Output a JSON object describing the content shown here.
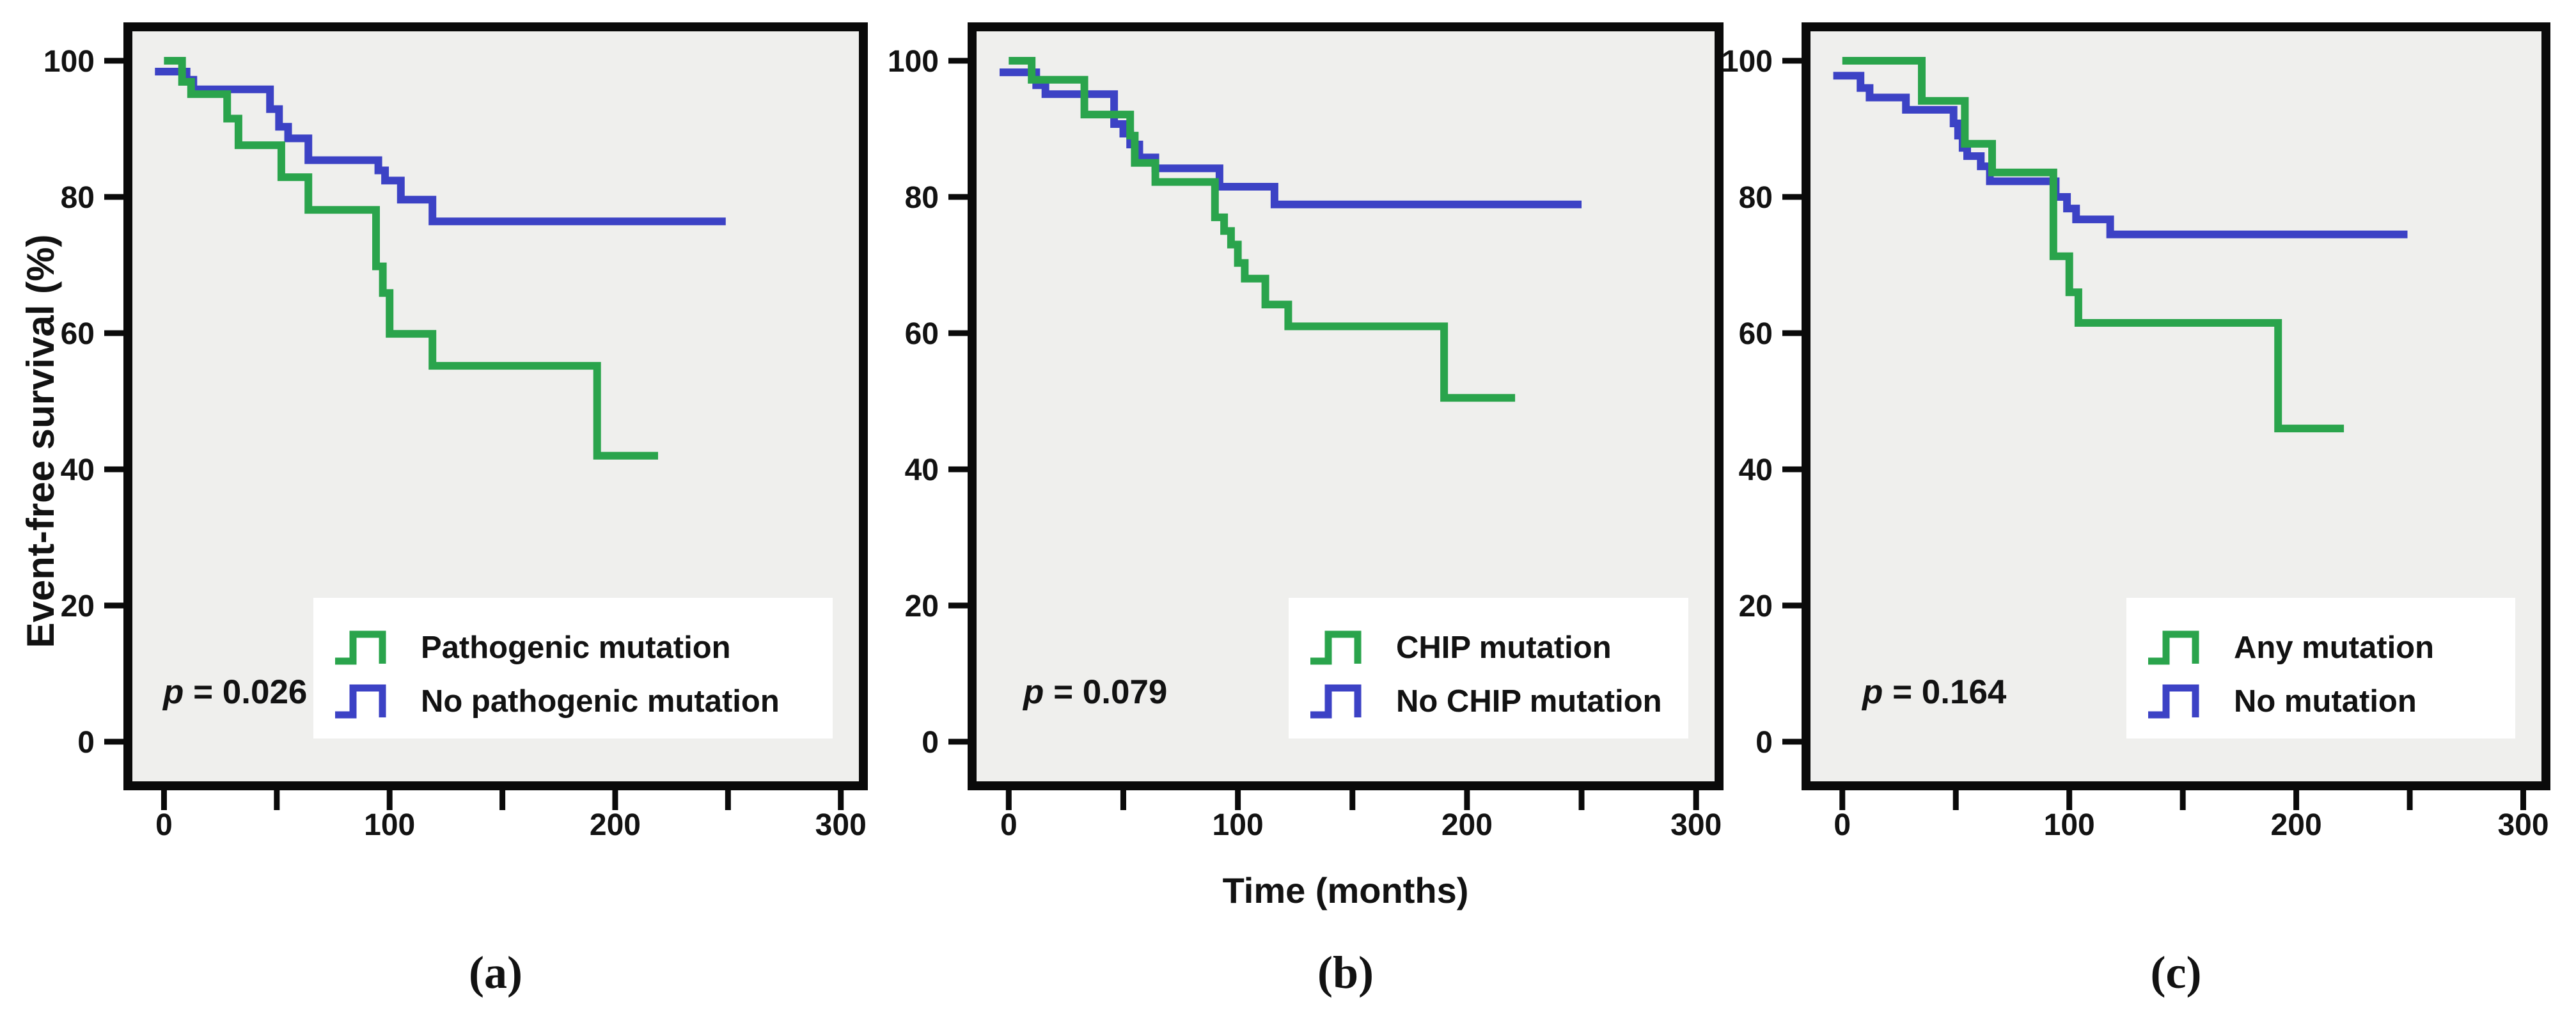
{
  "figure": {
    "y_axis_title": "Event-free survival (%)",
    "x_axis_title": "Time (months)",
    "x_tick_labels": [
      "0",
      "100",
      "200",
      "300"
    ],
    "x_labeled_ticks": [
      0,
      100,
      200,
      300
    ],
    "x_minor_ticks": [
      50,
      150,
      250
    ],
    "y_tick_labels": [
      "0",
      "20",
      "40",
      "60",
      "80",
      "100"
    ],
    "y_ticks": [
      0,
      20,
      40,
      60,
      80,
      100
    ],
    "colors": {
      "green": "#2aa44c",
      "blue": "#3c42c5",
      "plot_background": "#efefed",
      "frame": "#0a0a0a",
      "text": "#121212",
      "page_background": "#ffffff",
      "legend_background": "#ffffff"
    }
  },
  "chart_data": [
    {
      "type": "line",
      "subtype": "kaplan-meier-step",
      "panel_label": "(a)",
      "p_value": "p = 0.026",
      "xlim": [
        0,
        300
      ],
      "ylim": [
        0,
        100
      ],
      "grid": false,
      "legend_position": "lower-right",
      "series": [
        {
          "name": "Pathogenic mutation",
          "color_key": "green",
          "points": [
            [
              0,
              100
            ],
            [
              8,
              100
            ],
            [
              8,
              96.9
            ],
            [
              12,
              96.9
            ],
            [
              12,
              95.1
            ],
            [
              28,
              95.1
            ],
            [
              28,
              91.5
            ],
            [
              33,
              91.5
            ],
            [
              33,
              87.6
            ],
            [
              52,
              87.6
            ],
            [
              52,
              82.9
            ],
            [
              64,
              82.9
            ],
            [
              64,
              78.1
            ],
            [
              94,
              78.1
            ],
            [
              94,
              69.8
            ],
            [
              97,
              69.8
            ],
            [
              97,
              65.9
            ],
            [
              100,
              65.9
            ],
            [
              100,
              59.9
            ],
            [
              119,
              59.9
            ],
            [
              119,
              55.2
            ],
            [
              192,
              55.2
            ],
            [
              192,
              42
            ],
            [
              219,
              42
            ]
          ]
        },
        {
          "name": "No pathogenic mutation",
          "color_key": "blue",
          "points": [
            [
              -4,
              98.4
            ],
            [
              10,
              98.4
            ],
            [
              10,
              97.2
            ],
            [
              13,
              97.2
            ],
            [
              13,
              95.8
            ],
            [
              47,
              95.8
            ],
            [
              47,
              92.9
            ],
            [
              51,
              92.9
            ],
            [
              51,
              90.3
            ],
            [
              55,
              90.3
            ],
            [
              55,
              88.6
            ],
            [
              64,
              88.6
            ],
            [
              64,
              85.4
            ],
            [
              95,
              85.4
            ],
            [
              95,
              83.9
            ],
            [
              98,
              83.9
            ],
            [
              98,
              82.4
            ],
            [
              105,
              82.4
            ],
            [
              105,
              79.6
            ],
            [
              119,
              79.6
            ],
            [
              119,
              76.4
            ],
            [
              249,
              76.4
            ]
          ]
        }
      ]
    },
    {
      "type": "line",
      "subtype": "kaplan-meier-step",
      "panel_label": "(b)",
      "p_value": "p = 0.079",
      "xlim": [
        0,
        300
      ],
      "ylim": [
        0,
        100
      ],
      "grid": false,
      "legend_position": "lower-right",
      "series": [
        {
          "name": "CHIP mutation",
          "color_key": "green",
          "points": [
            [
              0,
              100
            ],
            [
              10,
              100
            ],
            [
              10,
              97.2
            ],
            [
              33,
              97.2
            ],
            [
              33,
              92.1
            ],
            [
              53,
              92.1
            ],
            [
              53,
              89
            ],
            [
              55,
              89
            ],
            [
              55,
              85
            ],
            [
              64,
              85
            ],
            [
              64,
              82.2
            ],
            [
              90,
              82.2
            ],
            [
              90,
              77
            ],
            [
              94,
              77
            ],
            [
              94,
              75
            ],
            [
              97,
              75
            ],
            [
              97,
              73
            ],
            [
              100,
              73
            ],
            [
              100,
              70.3
            ],
            [
              103,
              70.3
            ],
            [
              103,
              68
            ],
            [
              112,
              68
            ],
            [
              112,
              64.2
            ],
            [
              122,
              64.2
            ],
            [
              122,
              61
            ],
            [
              190,
              61
            ],
            [
              190,
              50.5
            ],
            [
              221,
              50.5
            ]
          ]
        },
        {
          "name": "No CHIP mutation",
          "color_key": "blue",
          "points": [
            [
              -4,
              98.3
            ],
            [
              12,
              98.3
            ],
            [
              12,
              96.4
            ],
            [
              16,
              96.4
            ],
            [
              16,
              95.1
            ],
            [
              46,
              95.1
            ],
            [
              46,
              90.7
            ],
            [
              50,
              90.7
            ],
            [
              50,
              89.3
            ],
            [
              53,
              89.3
            ],
            [
              53,
              87.7
            ],
            [
              57,
              87.7
            ],
            [
              57,
              85.8
            ],
            [
              64,
              85.8
            ],
            [
              64,
              84.2
            ],
            [
              92,
              84.2
            ],
            [
              92,
              81.5
            ],
            [
              116,
              81.5
            ],
            [
              116,
              78.9
            ],
            [
              250,
              78.9
            ]
          ]
        }
      ]
    },
    {
      "type": "line",
      "subtype": "kaplan-meier-step",
      "panel_label": "(c)",
      "p_value": "p = 0.164",
      "xlim": [
        0,
        300
      ],
      "ylim": [
        0,
        100
      ],
      "grid": false,
      "legend_position": "lower-right",
      "series": [
        {
          "name": "Any mutation",
          "color_key": "green",
          "points": [
            [
              0,
              100
            ],
            [
              35,
              100
            ],
            [
              35,
              94.1
            ],
            [
              54,
              94.1
            ],
            [
              54,
              87.8
            ],
            [
              66,
              87.8
            ],
            [
              66,
              83.6
            ],
            [
              93,
              83.6
            ],
            [
              93,
              71.3
            ],
            [
              100,
              71.3
            ],
            [
              100,
              66
            ],
            [
              104,
              66
            ],
            [
              104,
              61.5
            ],
            [
              192,
              61.5
            ],
            [
              192,
              46
            ],
            [
              221,
              46
            ]
          ]
        },
        {
          "name": "No mutation",
          "color_key": "blue",
          "points": [
            [
              -4,
              97.8
            ],
            [
              8,
              97.8
            ],
            [
              8,
              96
            ],
            [
              12,
              96
            ],
            [
              12,
              94.6
            ],
            [
              28,
              94.6
            ],
            [
              28,
              92.8
            ],
            [
              49,
              92.8
            ],
            [
              49,
              90.8
            ],
            [
              51,
              90.8
            ],
            [
              51,
              89
            ],
            [
              53,
              89
            ],
            [
              53,
              87.2
            ],
            [
              55,
              87.2
            ],
            [
              55,
              86
            ],
            [
              61,
              86
            ],
            [
              61,
              84.5
            ],
            [
              65,
              84.5
            ],
            [
              65,
              82.3
            ],
            [
              94,
              82.3
            ],
            [
              94,
              80
            ],
            [
              99,
              80
            ],
            [
              99,
              78.3
            ],
            [
              103,
              78.3
            ],
            [
              103,
              76.7
            ],
            [
              118,
              76.7
            ],
            [
              118,
              74.5
            ],
            [
              249,
              74.5
            ]
          ]
        }
      ]
    }
  ]
}
